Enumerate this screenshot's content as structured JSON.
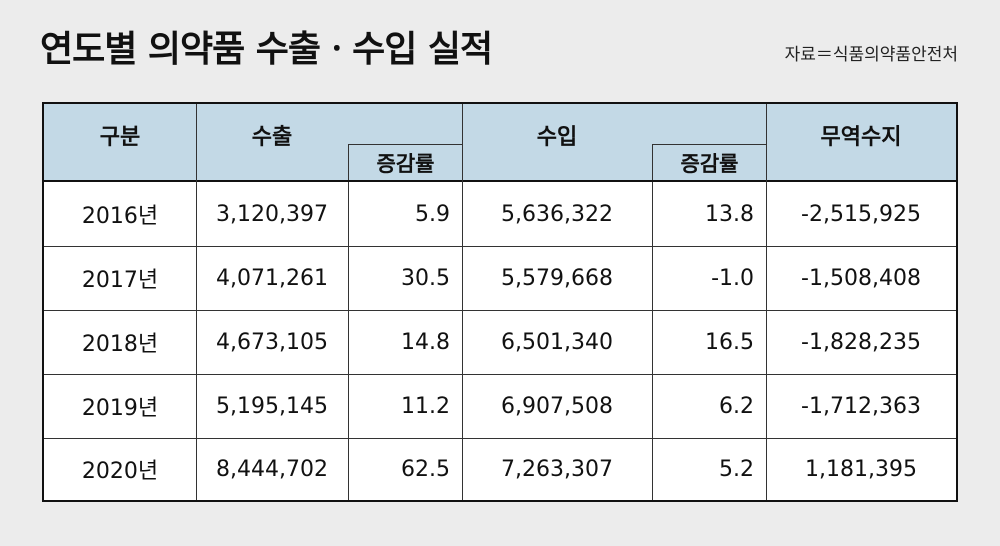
{
  "title": "연도별 의약품 수출ㆍ수입 실적",
  "source": "자료＝식품의약품안전처",
  "table": {
    "headers": {
      "category": "구분",
      "export": "수출",
      "export_growth": "증감률",
      "import": "수입",
      "import_growth": "증감률",
      "balance": "무역수지"
    },
    "rows": [
      {
        "year": "2016년",
        "export": "3,120,397",
        "export_growth": "5.9",
        "import": "5,636,322",
        "import_growth": "13.8",
        "balance": "-2,515,925"
      },
      {
        "year": "2017년",
        "export": "4,071,261",
        "export_growth": "30.5",
        "import": "5,579,668",
        "import_growth": "-1.0",
        "balance": "-1,508,408"
      },
      {
        "year": "2018년",
        "export": "4,673,105",
        "export_growth": "14.8",
        "import": "6,501,340",
        "import_growth": "16.5",
        "balance": "-1,828,235"
      },
      {
        "year": "2019년",
        "export": "5,195,145",
        "export_growth": "11.2",
        "import": "6,907,508",
        "import_growth": "6.2",
        "balance": "-1,712,363"
      },
      {
        "year": "2020년",
        "export": "8,444,702",
        "export_growth": "62.5",
        "import": "7,263,307",
        "import_growth": "5.2",
        "balance": "1,181,395"
      }
    ]
  }
}
